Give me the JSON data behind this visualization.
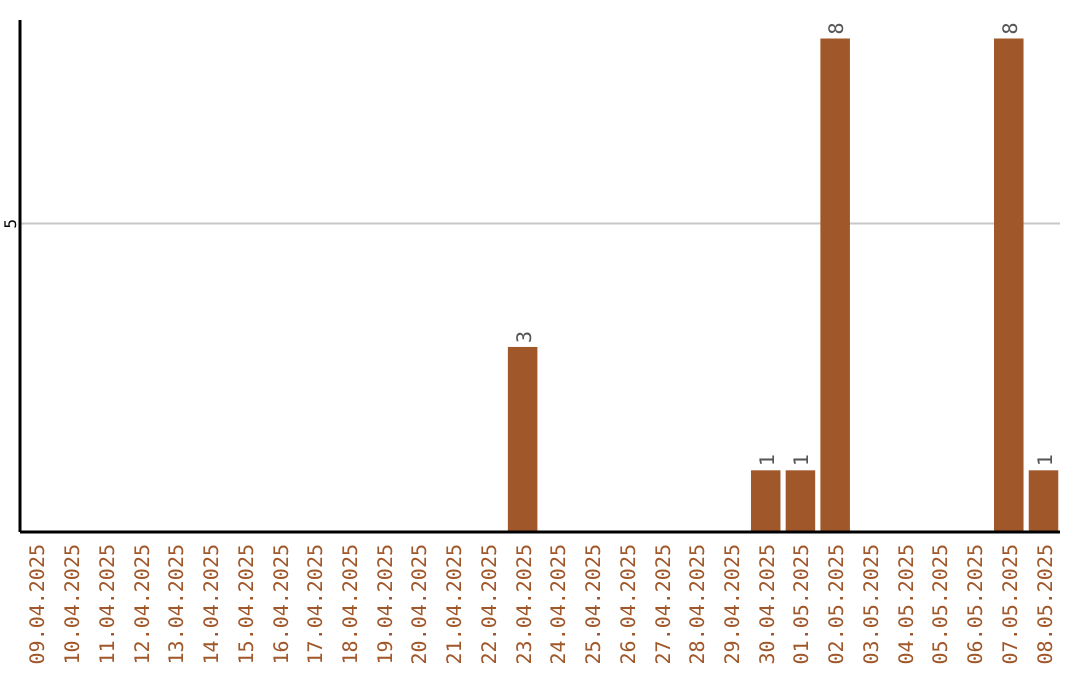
{
  "chart_data": {
    "type": "bar",
    "categories": [
      "09.04.2025",
      "10.04.2025",
      "11.04.2025",
      "12.04.2025",
      "13.04.2025",
      "14.04.2025",
      "15.04.2025",
      "16.04.2025",
      "17.04.2025",
      "18.04.2025",
      "19.04.2025",
      "20.04.2025",
      "21.04.2025",
      "22.04.2025",
      "23.04.2025",
      "24.04.2025",
      "25.04.2025",
      "26.04.2025",
      "27.04.2025",
      "28.04.2025",
      "29.04.2025",
      "30.04.2025",
      "01.05.2025",
      "02.05.2025",
      "03.05.2025",
      "04.05.2025",
      "05.05.2025",
      "06.05.2025",
      "07.05.2025",
      "08.05.2025"
    ],
    "values": [
      null,
      null,
      null,
      null,
      null,
      null,
      null,
      null,
      null,
      null,
      null,
      null,
      null,
      null,
      3,
      null,
      null,
      null,
      null,
      null,
      null,
      1,
      1,
      8,
      null,
      null,
      null,
      null,
      8,
      1
    ],
    "data_labels": true,
    "color": "#a0572a",
    "ylim": [
      0,
      8.3
    ],
    "yticks": [
      5
    ],
    "grid": "y"
  }
}
